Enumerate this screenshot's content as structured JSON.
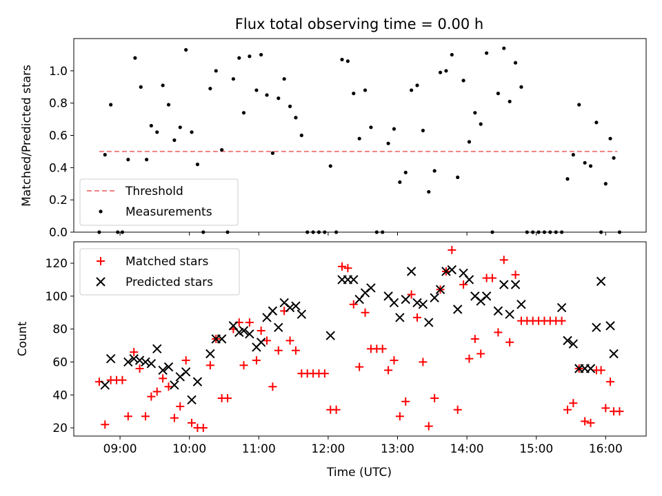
{
  "chart_data": [
    {
      "type": "scatter",
      "title": "Flux total observing time = 0.00 h",
      "xlabel": "",
      "ylabel": "Matched/Predicted stars",
      "xlim": [
        "08:20",
        "16:35"
      ],
      "ylim": [
        0,
        1.2
      ],
      "xticks": [
        "09:00",
        "10:00",
        "11:00",
        "12:00",
        "13:00",
        "14:00",
        "15:00",
        "16:00"
      ],
      "yticks": [
        "0.0",
        "0.2",
        "0.4",
        "0.6",
        "0.8",
        "1.0"
      ],
      "grid": false,
      "legend": {
        "placement": "lower-left",
        "entries": [
          "Threshold",
          "Measurements"
        ]
      },
      "series": [
        {
          "name": "Threshold",
          "kind": "dashed-line",
          "color": "#f08080",
          "points": [
            [
              "08:42",
              0.5
            ],
            [
              "16:10",
              0.5
            ]
          ]
        },
        {
          "name": "Measurements",
          "kind": "dot",
          "color": "#000000",
          "points": [
            [
              "08:42",
              0.0
            ],
            [
              "08:47",
              0.48
            ],
            [
              "08:52",
              0.79
            ],
            [
              "08:58",
              0.0
            ],
            [
              "09:02",
              0.0
            ],
            [
              "09:07",
              0.45
            ],
            [
              "09:13",
              1.08
            ],
            [
              "09:18",
              0.9
            ],
            [
              "09:23",
              0.45
            ],
            [
              "09:27",
              0.66
            ],
            [
              "09:32",
              0.62
            ],
            [
              "09:37",
              0.91
            ],
            [
              "09:42",
              0.79
            ],
            [
              "09:47",
              0.57
            ],
            [
              "09:52",
              0.65
            ],
            [
              "09:57",
              1.13
            ],
            [
              "10:02",
              0.62
            ],
            [
              "10:07",
              0.42
            ],
            [
              "10:12",
              0.0
            ],
            [
              "10:18",
              0.89
            ],
            [
              "10:23",
              1.0
            ],
            [
              "10:28",
              0.51
            ],
            [
              "10:33",
              0.0
            ],
            [
              "10:38",
              0.95
            ],
            [
              "10:43",
              1.08
            ],
            [
              "10:47",
              0.74
            ],
            [
              "10:52",
              1.09
            ],
            [
              "10:58",
              0.88
            ],
            [
              "11:02",
              1.1
            ],
            [
              "11:07",
              0.85
            ],
            [
              "11:12",
              0.49
            ],
            [
              "11:17",
              0.83
            ],
            [
              "11:22",
              0.95
            ],
            [
              "11:27",
              0.78
            ],
            [
              "11:32",
              0.71
            ],
            [
              "11:37",
              0.6
            ],
            [
              "11:42",
              0.0
            ],
            [
              "11:47",
              0.0
            ],
            [
              "11:52",
              0.0
            ],
            [
              "11:57",
              0.0
            ],
            [
              "12:02",
              0.41
            ],
            [
              "12:07",
              0.0
            ],
            [
              "12:12",
              1.07
            ],
            [
              "12:17",
              1.06
            ],
            [
              "12:22",
              0.86
            ],
            [
              "12:27",
              0.58
            ],
            [
              "12:32",
              0.88
            ],
            [
              "12:37",
              0.65
            ],
            [
              "12:42",
              0.0
            ],
            [
              "12:47",
              0.0
            ],
            [
              "12:52",
              0.55
            ],
            [
              "12:57",
              0.64
            ],
            [
              "13:02",
              0.31
            ],
            [
              "13:07",
              0.37
            ],
            [
              "13:12",
              0.88
            ],
            [
              "13:17",
              0.91
            ],
            [
              "13:22",
              0.63
            ],
            [
              "13:27",
              0.25
            ],
            [
              "13:32",
              0.38
            ],
            [
              "13:37",
              0.99
            ],
            [
              "13:42",
              1.0
            ],
            [
              "13:47",
              1.1
            ],
            [
              "13:52",
              0.34
            ],
            [
              "13:57",
              0.94
            ],
            [
              "14:02",
              0.56
            ],
            [
              "14:07",
              0.74
            ],
            [
              "14:12",
              0.67
            ],
            [
              "14:17",
              1.11
            ],
            [
              "14:22",
              0.0
            ],
            [
              "14:27",
              0.86
            ],
            [
              "14:32",
              1.14
            ],
            [
              "14:37",
              0.81
            ],
            [
              "14:42",
              1.05
            ],
            [
              "14:47",
              0.9
            ],
            [
              "14:52",
              0.0
            ],
            [
              "14:57",
              0.0
            ],
            [
              "15:02",
              0.0
            ],
            [
              "15:07",
              0.0
            ],
            [
              "15:12",
              0.0
            ],
            [
              "15:17",
              0.0
            ],
            [
              "15:22",
              0.0
            ],
            [
              "15:27",
              0.33
            ],
            [
              "15:32",
              0.48
            ],
            [
              "15:37",
              0.79
            ],
            [
              "15:42",
              0.43
            ],
            [
              "15:47",
              0.41
            ],
            [
              "15:52",
              0.68
            ],
            [
              "15:56",
              0.0
            ],
            [
              "16:00",
              0.3
            ],
            [
              "16:04",
              0.58
            ],
            [
              "16:07",
              0.46
            ],
            [
              "16:12",
              0.0
            ]
          ]
        }
      ]
    },
    {
      "type": "scatter",
      "title": "",
      "xlabel": "Time (UTC)",
      "ylabel": "Count",
      "xlim": [
        "08:20",
        "16:35"
      ],
      "ylim": [
        15,
        133
      ],
      "xticks": [
        "09:00",
        "10:00",
        "11:00",
        "12:00",
        "13:00",
        "14:00",
        "15:00",
        "16:00"
      ],
      "yticks": [
        "20",
        "40",
        "60",
        "80",
        "100",
        "120"
      ],
      "grid": false,
      "legend": {
        "placement": "top-left",
        "entries": [
          "Matched stars",
          "Predicted stars"
        ]
      },
      "series": [
        {
          "name": "Matched stars",
          "kind": "plus",
          "color": "#ff0000",
          "points": [
            [
              "08:42",
              48
            ],
            [
              "08:47",
              22
            ],
            [
              "08:52",
              49
            ],
            [
              "08:57",
              49
            ],
            [
              "09:02",
              49
            ],
            [
              "09:07",
              27
            ],
            [
              "09:12",
              66
            ],
            [
              "09:17",
              56
            ],
            [
              "09:22",
              27
            ],
            [
              "09:27",
              39
            ],
            [
              "09:32",
              42
            ],
            [
              "09:37",
              50
            ],
            [
              "09:42",
              45
            ],
            [
              "09:47",
              26
            ],
            [
              "09:52",
              33
            ],
            [
              "09:57",
              61
            ],
            [
              "10:02",
              23
            ],
            [
              "10:07",
              20
            ],
            [
              "10:12",
              20
            ],
            [
              "10:18",
              58
            ],
            [
              "10:23",
              74
            ],
            [
              "10:28",
              38
            ],
            [
              "10:33",
              38
            ],
            [
              "10:38",
              80
            ],
            [
              "10:43",
              84
            ],
            [
              "10:47",
              58
            ],
            [
              "10:52",
              84
            ],
            [
              "10:58",
              61
            ],
            [
              "11:02",
              79
            ],
            [
              "11:07",
              73
            ],
            [
              "11:12",
              45
            ],
            [
              "11:17",
              67
            ],
            [
              "11:22",
              91
            ],
            [
              "11:27",
              73
            ],
            [
              "11:32",
              67
            ],
            [
              "11:37",
              53
            ],
            [
              "11:42",
              53
            ],
            [
              "11:47",
              53
            ],
            [
              "11:52",
              53
            ],
            [
              "11:57",
              53
            ],
            [
              "12:02",
              31
            ],
            [
              "12:07",
              31
            ],
            [
              "12:12",
              118
            ],
            [
              "12:17",
              117
            ],
            [
              "12:22",
              95
            ],
            [
              "12:27",
              57
            ],
            [
              "12:32",
              90
            ],
            [
              "12:37",
              68
            ],
            [
              "12:42",
              68
            ],
            [
              "12:47",
              68
            ],
            [
              "12:52",
              55
            ],
            [
              "12:57",
              61
            ],
            [
              "13:02",
              27
            ],
            [
              "13:07",
              36
            ],
            [
              "13:12",
              101
            ],
            [
              "13:17",
              87
            ],
            [
              "13:22",
              60
            ],
            [
              "13:27",
              21
            ],
            [
              "13:32",
              38
            ],
            [
              "13:37",
              104
            ],
            [
              "13:42",
              115
            ],
            [
              "13:47",
              128
            ],
            [
              "13:52",
              31
            ],
            [
              "13:57",
              107
            ],
            [
              "14:02",
              62
            ],
            [
              "14:07",
              74
            ],
            [
              "14:12",
              65
            ],
            [
              "14:17",
              111
            ],
            [
              "14:22",
              111
            ],
            [
              "14:27",
              78
            ],
            [
              "14:32",
              122
            ],
            [
              "14:37",
              72
            ],
            [
              "14:42",
              113
            ],
            [
              "14:47",
              85
            ],
            [
              "14:52",
              85
            ],
            [
              "14:57",
              85
            ],
            [
              "15:02",
              85
            ],
            [
              "15:07",
              85
            ],
            [
              "15:12",
              85
            ],
            [
              "15:17",
              85
            ],
            [
              "15:22",
              85
            ],
            [
              "15:27",
              31
            ],
            [
              "15:32",
              35
            ],
            [
              "15:37",
              56
            ],
            [
              "15:42",
              24
            ],
            [
              "15:47",
              23
            ],
            [
              "15:52",
              55
            ],
            [
              "15:56",
              55
            ],
            [
              "16:00",
              32
            ],
            [
              "16:04",
              48
            ],
            [
              "16:07",
              30
            ],
            [
              "16:12",
              30
            ]
          ]
        },
        {
          "name": "Predicted stars",
          "kind": "x",
          "color": "#000000",
          "points": [
            [
              "08:47",
              46
            ],
            [
              "08:52",
              62
            ],
            [
              "09:07",
              60
            ],
            [
              "09:12",
              62
            ],
            [
              "09:17",
              61
            ],
            [
              "09:22",
              60
            ],
            [
              "09:27",
              59
            ],
            [
              "09:32",
              68
            ],
            [
              "09:37",
              55
            ],
            [
              "09:42",
              57
            ],
            [
              "09:47",
              46
            ],
            [
              "09:52",
              51
            ],
            [
              "09:57",
              54
            ],
            [
              "10:02",
              37
            ],
            [
              "10:07",
              48
            ],
            [
              "10:18",
              65
            ],
            [
              "10:23",
              74
            ],
            [
              "10:28",
              74
            ],
            [
              "10:38",
              82
            ],
            [
              "10:43",
              78
            ],
            [
              "10:47",
              79
            ],
            [
              "10:52",
              77
            ],
            [
              "10:58",
              69
            ],
            [
              "11:02",
              72
            ],
            [
              "11:07",
              87
            ],
            [
              "11:12",
              91
            ],
            [
              "11:17",
              81
            ],
            [
              "11:22",
              96
            ],
            [
              "11:27",
              93
            ],
            [
              "11:32",
              94
            ],
            [
              "11:37",
              89
            ],
            [
              "12:02",
              76
            ],
            [
              "12:12",
              110
            ],
            [
              "12:17",
              110
            ],
            [
              "12:22",
              110
            ],
            [
              "12:27",
              98
            ],
            [
              "12:32",
              102
            ],
            [
              "12:37",
              105
            ],
            [
              "12:52",
              100
            ],
            [
              "12:57",
              96
            ],
            [
              "13:02",
              87
            ],
            [
              "13:07",
              98
            ],
            [
              "13:12",
              115
            ],
            [
              "13:17",
              96
            ],
            [
              "13:22",
              95
            ],
            [
              "13:27",
              84
            ],
            [
              "13:32",
              99
            ],
            [
              "13:37",
              104
            ],
            [
              "13:42",
              115
            ],
            [
              "13:47",
              116
            ],
            [
              "13:52",
              92
            ],
            [
              "13:57",
              114
            ],
            [
              "14:02",
              110
            ],
            [
              "14:07",
              100
            ],
            [
              "14:12",
              97
            ],
            [
              "14:17",
              100
            ],
            [
              "14:27",
              91
            ],
            [
              "14:32",
              107
            ],
            [
              "14:37",
              89
            ],
            [
              "14:42",
              107
            ],
            [
              "14:47",
              95
            ],
            [
              "15:22",
              93
            ],
            [
              "15:27",
              73
            ],
            [
              "15:32",
              71
            ],
            [
              "15:37",
              56
            ],
            [
              "15:42",
              56
            ],
            [
              "15:47",
              56
            ],
            [
              "15:52",
              81
            ],
            [
              "15:56",
              109
            ],
            [
              "16:04",
              82
            ],
            [
              "16:07",
              65
            ]
          ]
        }
      ]
    }
  ]
}
